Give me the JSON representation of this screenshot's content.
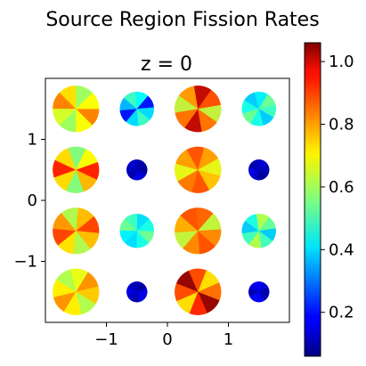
{
  "chart_data": {
    "type": "heatmap",
    "suptitle": "Source Region Fission Rates",
    "title": "z = 0",
    "xlabel": "",
    "ylabel": "",
    "xlim": [
      -2.0,
      2.0
    ],
    "ylim": [
      -2.0,
      2.0
    ],
    "xticks": [
      -1,
      0,
      1
    ],
    "xtick_labels": [
      "−1",
      "0",
      "1"
    ],
    "yticks": [
      -1,
      0,
      1
    ],
    "ytick_labels": [
      "−1",
      "0",
      "1"
    ],
    "grid": false,
    "colormap": "jet",
    "colorbar": {
      "vmin": 0.06,
      "vmax": 1.06,
      "ticks": [
        0.2,
        0.4,
        0.6,
        0.8,
        1.0
      ],
      "tick_labels": [
        "0.2",
        "0.4",
        "0.6",
        "0.8",
        "1.0"
      ]
    },
    "pins": [
      {
        "x": -1.5,
        "y": 1.5,
        "r": 0.38,
        "value": 0.68,
        "high": 0.82,
        "low": 0.58
      },
      {
        "x": -0.5,
        "y": 1.5,
        "r": 0.28,
        "value": 0.4,
        "high": 0.5,
        "low": 0.18
      },
      {
        "x": 0.5,
        "y": 1.5,
        "r": 0.38,
        "value": 0.82,
        "high": 1.0,
        "low": 0.62
      },
      {
        "x": 1.5,
        "y": 1.5,
        "r": 0.28,
        "value": 0.46,
        "high": 0.55,
        "low": 0.38
      },
      {
        "x": -1.5,
        "y": 0.5,
        "r": 0.38,
        "value": 0.72,
        "high": 0.92,
        "low": 0.55
      },
      {
        "x": -0.5,
        "y": 0.5,
        "r": 0.17,
        "value": 0.12,
        "high": 0.14,
        "low": 0.1
      },
      {
        "x": 0.5,
        "y": 0.5,
        "r": 0.38,
        "value": 0.78,
        "high": 0.86,
        "low": 0.66
      },
      {
        "x": 1.5,
        "y": 0.5,
        "r": 0.17,
        "value": 0.12,
        "high": 0.14,
        "low": 0.1
      },
      {
        "x": -1.5,
        "y": -0.5,
        "r": 0.38,
        "value": 0.75,
        "high": 0.88,
        "low": 0.6
      },
      {
        "x": -0.5,
        "y": -0.5,
        "r": 0.28,
        "value": 0.46,
        "high": 0.55,
        "low": 0.4
      },
      {
        "x": 0.5,
        "y": -0.5,
        "r": 0.38,
        "value": 0.8,
        "high": 0.86,
        "low": 0.62
      },
      {
        "x": 1.5,
        "y": -0.5,
        "r": 0.28,
        "value": 0.5,
        "high": 0.62,
        "low": 0.38
      },
      {
        "x": -1.5,
        "y": -1.5,
        "r": 0.38,
        "value": 0.7,
        "high": 0.8,
        "low": 0.6
      },
      {
        "x": -0.5,
        "y": -1.5,
        "r": 0.17,
        "value": 0.13,
        "high": 0.16,
        "low": 0.1
      },
      {
        "x": 0.5,
        "y": -1.5,
        "r": 0.38,
        "value": 0.86,
        "high": 1.05,
        "low": 0.7
      },
      {
        "x": 1.5,
        "y": -1.5,
        "r": 0.17,
        "value": 0.15,
        "high": 0.18,
        "low": 0.1
      }
    ]
  }
}
